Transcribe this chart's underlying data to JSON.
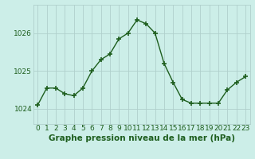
{
  "hours": [
    0,
    1,
    2,
    3,
    4,
    5,
    6,
    7,
    8,
    9,
    10,
    11,
    12,
    13,
    14,
    15,
    16,
    17,
    18,
    19,
    20,
    21,
    22,
    23
  ],
  "pressure": [
    1024.1,
    1024.55,
    1024.55,
    1024.4,
    1024.35,
    1024.55,
    1025.0,
    1025.3,
    1025.45,
    1025.85,
    1026.0,
    1026.35,
    1026.25,
    1026.0,
    1025.2,
    1024.7,
    1024.25,
    1024.15,
    1024.15,
    1024.15,
    1024.15,
    1024.5,
    1024.7,
    1024.85
  ],
  "line_color": "#1e5e1e",
  "marker": "+",
  "marker_size": 4,
  "marker_linewidth": 1.2,
  "line_width": 1.0,
  "bg_color": "#cceee8",
  "grid_color": "#b0d0cc",
  "xlabel": "Graphe pression niveau de la mer (hPa)",
  "xlabel_color": "#1e5e1e",
  "xlabel_fontsize": 7.5,
  "tick_color": "#1e5e1e",
  "tick_fontsize": 6.5,
  "yticks": [
    1024,
    1025,
    1026
  ],
  "ylim": [
    1023.6,
    1026.75
  ],
  "xlim": [
    -0.5,
    23.5
  ],
  "xtick_labels": [
    "0",
    "1",
    "2",
    "3",
    "4",
    "5",
    "6",
    "7",
    "8",
    "9",
    "10",
    "11",
    "12",
    "13",
    "14",
    "15",
    "16",
    "17",
    "18",
    "19",
    "20",
    "21",
    "22",
    "23"
  ]
}
